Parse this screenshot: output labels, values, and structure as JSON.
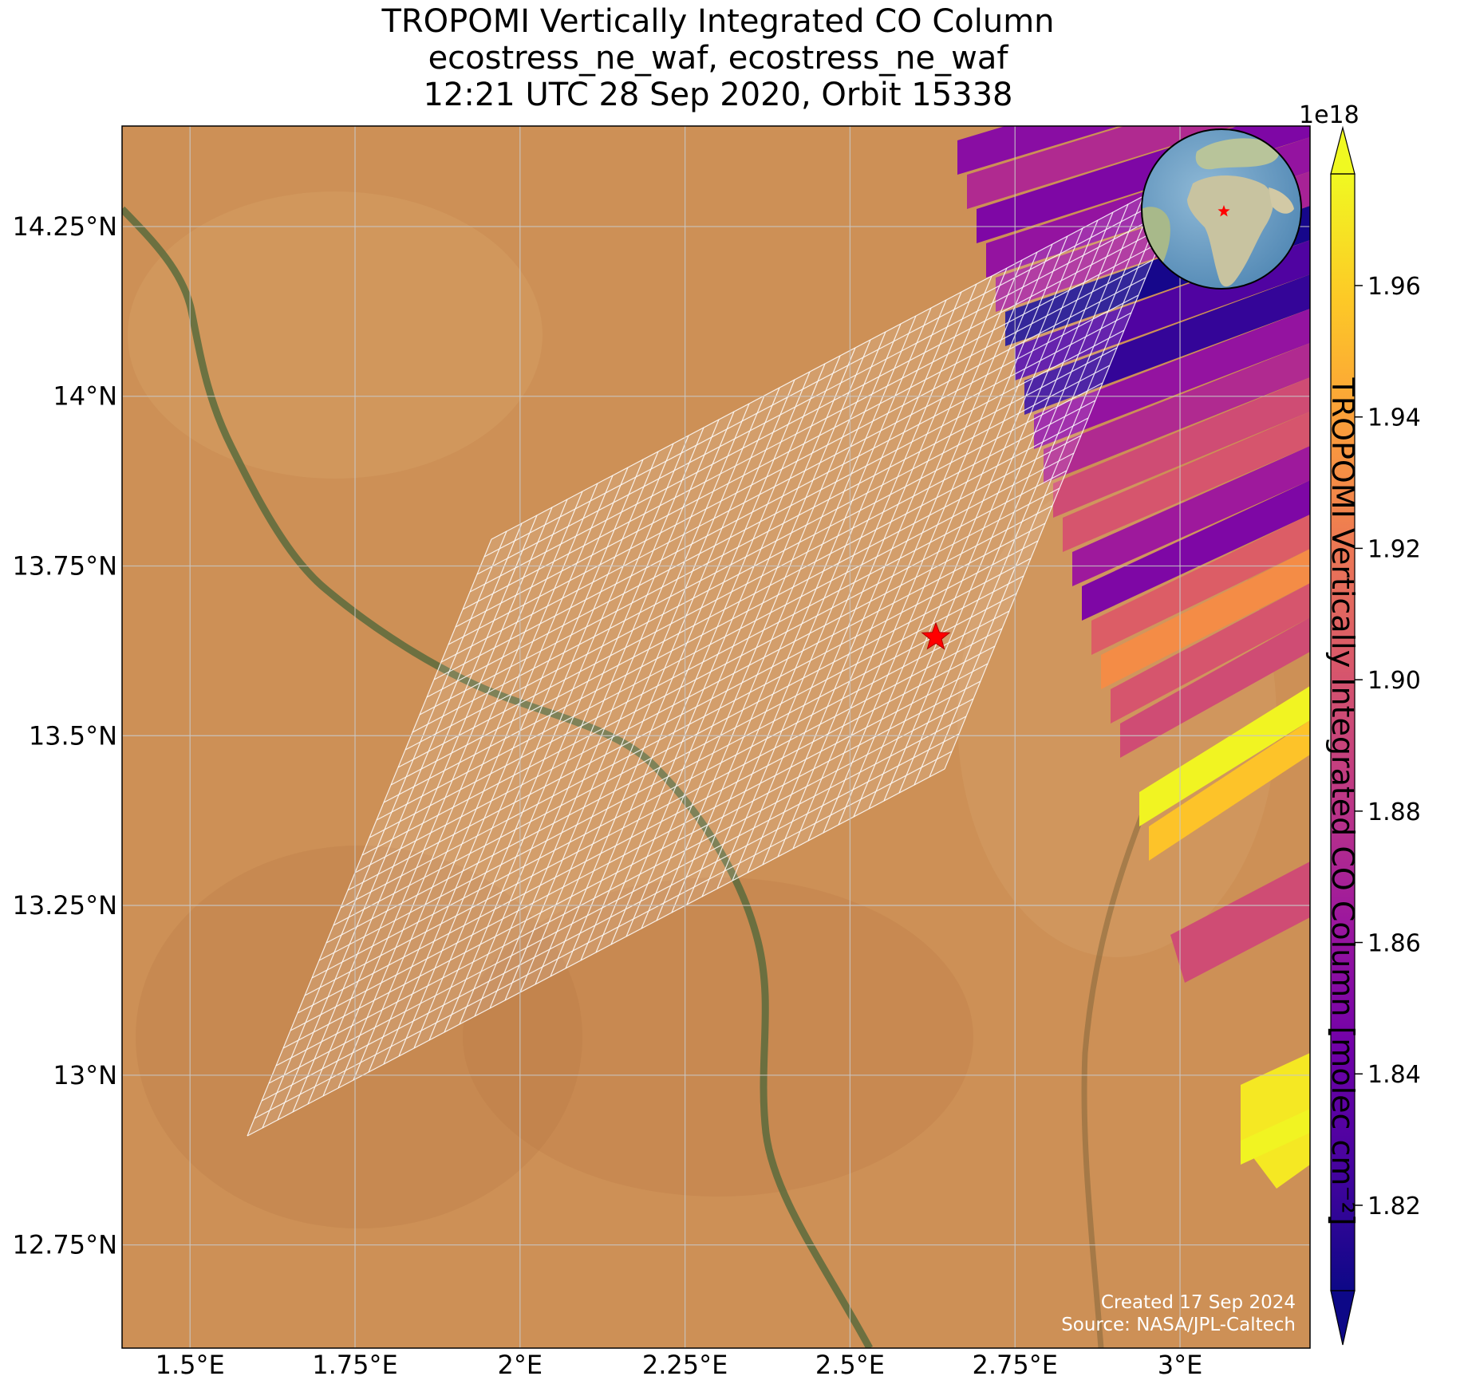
{
  "title": {
    "line1": "TROPOMI Vertically Integrated CO Column",
    "line2": "ecostress_ne_waf, ecostress_ne_waf",
    "line3": "12:21 UTC 28 Sep 2020, Orbit 15338"
  },
  "axes": {
    "x_ticks": [
      "1.5°E",
      "1.75°E",
      "2°E",
      "2.25°E",
      "2.5°E",
      "2.75°E",
      "3°E"
    ],
    "x_values": [
      1.5,
      1.75,
      2.0,
      2.25,
      2.5,
      2.75,
      3.0
    ],
    "y_ticks": [
      "14.25°N",
      "14°N",
      "13.75°N",
      "13.5°N",
      "13.25°N",
      "13°N",
      "12.75°N"
    ],
    "y_values": [
      14.25,
      14.0,
      13.75,
      13.5,
      13.25,
      13.0,
      12.75
    ],
    "xlim": [
      1.397,
      3.197
    ],
    "ylim": [
      12.598,
      14.398
    ],
    "grid": true
  },
  "colorbar": {
    "label": "TROPOMI Vertically Integrated CO Column [molec cm⁻²]",
    "exponent": "1e18",
    "ticks": [
      "1.82",
      "1.84",
      "1.86",
      "1.88",
      "1.90",
      "1.92",
      "1.94",
      "1.96"
    ],
    "tick_values": [
      1.82,
      1.84,
      1.86,
      1.88,
      1.9,
      1.92,
      1.94,
      1.96
    ],
    "range": [
      1.807,
      1.977
    ],
    "colormap": "plasma",
    "extend": "both",
    "colors": [
      "#0d0887",
      "#46039f",
      "#7201a8",
      "#9c179e",
      "#bd3786",
      "#d8576b",
      "#ed7953",
      "#fb9f3a",
      "#fdca26",
      "#f0f921"
    ]
  },
  "chart_data": {
    "type": "map",
    "site_marker": {
      "lon": 2.63,
      "lat": 13.645,
      "symbol": "star",
      "color": "#ff0000"
    },
    "tropomi_swaths": [
      {
        "corners": [
          [
            2.66,
            14.39
          ],
          [
            2.72,
            14.39
          ],
          [
            2.63,
            14.37
          ]
        ],
        "value": 1.855
      },
      {
        "value": 1.875
      },
      {
        "value": 1.85
      },
      {
        "value": 1.86
      },
      {
        "value": 1.87
      },
      {
        "value": 1.81
      },
      {
        "value": 1.83
      },
      {
        "value": 1.82
      },
      {
        "value": 1.86
      },
      {
        "value": 1.875
      },
      {
        "value": 1.895
      },
      {
        "value": 1.9
      },
      {
        "value": 1.865
      },
      {
        "value": 1.85
      },
      {
        "value": 1.905
      },
      {
        "value": 1.93
      },
      {
        "value": 1.9
      },
      {
        "value": 1.895
      },
      {
        "value": 1.96
      },
      {
        "value": 1.975
      },
      {
        "value": 1.955
      }
    ],
    "inset_globe": {
      "center_lon": 2.5,
      "center_lat": 13.5
    }
  },
  "credits": {
    "created": "Created 17 Sep 2024",
    "source": "Source: NASA/JPL-Caltech"
  }
}
